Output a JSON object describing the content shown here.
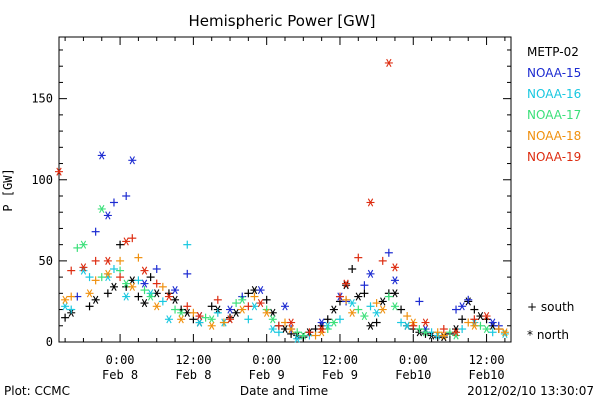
{
  "chart_data": {
    "type": "scatter",
    "title": "Hemispheric Power [GW]",
    "ylabel": "P [GW]",
    "xlabel": "Date and Time",
    "xlim": [
      -10,
      64
    ],
    "ylim": [
      0,
      188
    ],
    "y_ticks": [
      0,
      50,
      100,
      150
    ],
    "x_ticks": [
      {
        "x": 0,
        "l1": "0:00",
        "l2": "Feb 8"
      },
      {
        "x": 12,
        "l1": "12:00",
        "l2": "Feb 8"
      },
      {
        "x": 24,
        "l1": "0:00",
        "l2": "Feb 9"
      },
      {
        "x": 36,
        "l1": "12:00",
        "l2": "Feb 9"
      },
      {
        "x": 48,
        "l1": "0:00",
        "l2": "Feb10"
      },
      {
        "x": 60,
        "l1": "12:00",
        "l2": "Feb10"
      }
    ],
    "grid": false,
    "legend_position": "right",
    "marker_legend": [
      {
        "symbol": "+",
        "label": "south"
      },
      {
        "symbol": "*",
        "label": "north"
      }
    ],
    "series": [
      {
        "name": "METP-02",
        "color": "#000000",
        "south": [
          [
            -9,
            15
          ],
          [
            -5,
            22
          ],
          [
            -2,
            30
          ],
          [
            0,
            60
          ],
          [
            1,
            34
          ],
          [
            3,
            28
          ],
          [
            5,
            40
          ],
          [
            8,
            30
          ],
          [
            10,
            20
          ],
          [
            12,
            14
          ],
          [
            15,
            22
          ],
          [
            18,
            15
          ],
          [
            21,
            30
          ],
          [
            24,
            26
          ],
          [
            26,
            10
          ],
          [
            28,
            5
          ],
          [
            30,
            3
          ],
          [
            32,
            8
          ],
          [
            34,
            14
          ],
          [
            36,
            25
          ],
          [
            38,
            45
          ],
          [
            40,
            30
          ],
          [
            42,
            12
          ],
          [
            44,
            30
          ],
          [
            46,
            20
          ],
          [
            48,
            8
          ],
          [
            50,
            5
          ],
          [
            52,
            3
          ],
          [
            54,
            5
          ],
          [
            56,
            14
          ],
          [
            58,
            20
          ],
          [
            60,
            14
          ],
          [
            62,
            8
          ]
        ],
        "north": [
          [
            -8,
            18
          ],
          [
            -4,
            26
          ],
          [
            -1,
            34
          ],
          [
            2,
            38
          ],
          [
            4,
            24
          ],
          [
            6,
            30
          ],
          [
            9,
            26
          ],
          [
            11,
            18
          ],
          [
            13,
            12
          ],
          [
            16,
            20
          ],
          [
            19,
            18
          ],
          [
            22,
            32
          ],
          [
            25,
            18
          ],
          [
            27,
            8
          ],
          [
            29,
            4
          ],
          [
            31,
            6
          ],
          [
            33,
            10
          ],
          [
            35,
            20
          ],
          [
            37,
            35
          ],
          [
            39,
            28
          ],
          [
            41,
            10
          ],
          [
            43,
            25
          ],
          [
            45,
            30
          ],
          [
            47,
            10
          ],
          [
            49,
            6
          ],
          [
            51,
            4
          ],
          [
            53,
            3
          ],
          [
            55,
            8
          ],
          [
            57,
            25
          ],
          [
            59,
            16
          ],
          [
            61,
            10
          ]
        ]
      },
      {
        "name": "NOAA-15",
        "color": "#1c2bd1",
        "south": [
          [
            -7,
            28
          ],
          [
            -4,
            68
          ],
          [
            -1,
            86
          ],
          [
            1,
            90
          ],
          [
            6,
            45
          ],
          [
            11,
            42
          ],
          [
            20,
            28
          ],
          [
            28,
            8
          ],
          [
            37,
            25
          ],
          [
            40,
            35
          ],
          [
            44,
            55
          ],
          [
            49,
            25
          ],
          [
            55,
            20
          ],
          [
            57,
            26
          ],
          [
            62,
            10
          ]
        ],
        "north": [
          [
            -3,
            115
          ],
          [
            -2,
            78
          ],
          [
            2,
            112
          ],
          [
            4,
            36
          ],
          [
            9,
            32
          ],
          [
            13,
            16
          ],
          [
            18,
            20
          ],
          [
            23,
            32
          ],
          [
            27,
            22
          ],
          [
            33,
            12
          ],
          [
            36,
            28
          ],
          [
            41,
            42
          ],
          [
            45,
            38
          ],
          [
            50,
            8
          ],
          [
            56,
            22
          ],
          [
            61,
            12
          ]
        ]
      },
      {
        "name": "NOAA-16",
        "color": "#19c8e0",
        "south": [
          [
            -8,
            20
          ],
          [
            -5,
            40
          ],
          [
            -1,
            45
          ],
          [
            3,
            38
          ],
          [
            7,
            25
          ],
          [
            11,
            60
          ],
          [
            16,
            18
          ],
          [
            21,
            14
          ],
          [
            26,
            6
          ],
          [
            31,
            4
          ],
          [
            36,
            14
          ],
          [
            41,
            22
          ],
          [
            46,
            12
          ],
          [
            51,
            6
          ],
          [
            56,
            8
          ],
          [
            61,
            6
          ]
        ],
        "north": [
          [
            -9,
            22
          ],
          [
            -6,
            44
          ],
          [
            -2,
            40
          ],
          [
            1,
            28
          ],
          [
            5,
            30
          ],
          [
            8,
            14
          ],
          [
            13,
            12
          ],
          [
            17,
            12
          ],
          [
            22,
            22
          ],
          [
            25,
            8
          ],
          [
            29,
            2
          ],
          [
            34,
            10
          ],
          [
            38,
            24
          ],
          [
            42,
            18
          ],
          [
            47,
            10
          ],
          [
            52,
            4
          ],
          [
            58,
            12
          ],
          [
            63,
            5
          ]
        ]
      },
      {
        "name": "NOAA-17",
        "color": "#3be07a",
        "south": [
          [
            -7,
            58
          ],
          [
            -3,
            40
          ],
          [
            0,
            44
          ],
          [
            4,
            32
          ],
          [
            9,
            20
          ],
          [
            14,
            15
          ],
          [
            19,
            24
          ],
          [
            24,
            20
          ],
          [
            29,
            6
          ],
          [
            34,
            8
          ],
          [
            39,
            20
          ],
          [
            44,
            28
          ],
          [
            49,
            8
          ],
          [
            54,
            6
          ],
          [
            59,
            10
          ]
        ],
        "north": [
          [
            -6,
            60
          ],
          [
            -3,
            82
          ],
          [
            1,
            36
          ],
          [
            5,
            28
          ],
          [
            10,
            18
          ],
          [
            15,
            14
          ],
          [
            20,
            26
          ],
          [
            25,
            14
          ],
          [
            30,
            4
          ],
          [
            35,
            12
          ],
          [
            40,
            16
          ],
          [
            45,
            22
          ],
          [
            50,
            6
          ],
          [
            55,
            4
          ],
          [
            60,
            8
          ]
        ]
      },
      {
        "name": "NOAA-18",
        "color": "#f0900e",
        "south": [
          [
            -8,
            28
          ],
          [
            -4,
            38
          ],
          [
            0,
            50
          ],
          [
            3,
            52
          ],
          [
            7,
            34
          ],
          [
            12,
            18
          ],
          [
            17,
            12
          ],
          [
            22,
            28
          ],
          [
            27,
            12
          ],
          [
            32,
            4
          ],
          [
            37,
            26
          ],
          [
            42,
            24
          ],
          [
            47,
            16
          ],
          [
            52,
            6
          ],
          [
            57,
            12
          ],
          [
            62,
            8
          ]
        ],
        "north": [
          [
            -9,
            26
          ],
          [
            -5,
            30
          ],
          [
            -2,
            42
          ],
          [
            2,
            34
          ],
          [
            6,
            22
          ],
          [
            10,
            14
          ],
          [
            15,
            10
          ],
          [
            20,
            20
          ],
          [
            24,
            18
          ],
          [
            28,
            8
          ],
          [
            33,
            6
          ],
          [
            38,
            18
          ],
          [
            43,
            20
          ],
          [
            48,
            12
          ],
          [
            53,
            4
          ],
          [
            58,
            10
          ],
          [
            63,
            6
          ]
        ]
      },
      {
        "name": "NOAA-19",
        "color": "#dd2c10",
        "south": [
          [
            -8,
            44
          ],
          [
            -4,
            50
          ],
          [
            0,
            40
          ],
          [
            2,
            64
          ],
          [
            6,
            36
          ],
          [
            11,
            22
          ],
          [
            16,
            26
          ],
          [
            21,
            22
          ],
          [
            26,
            10
          ],
          [
            31,
            6
          ],
          [
            36,
            28
          ],
          [
            39,
            52
          ],
          [
            43,
            50
          ],
          [
            48,
            10
          ],
          [
            53,
            8
          ],
          [
            58,
            14
          ]
        ],
        "north": [
          [
            -10,
            105
          ],
          [
            -6,
            46
          ],
          [
            -2,
            50
          ],
          [
            1,
            62
          ],
          [
            4,
            44
          ],
          [
            8,
            28
          ],
          [
            13,
            16
          ],
          [
            18,
            14
          ],
          [
            23,
            24
          ],
          [
            28,
            12
          ],
          [
            33,
            8
          ],
          [
            37,
            36
          ],
          [
            41,
            86
          ],
          [
            44,
            172
          ],
          [
            45,
            46
          ],
          [
            50,
            12
          ],
          [
            55,
            6
          ],
          [
            60,
            16
          ]
        ]
      }
    ]
  },
  "footer": {
    "left": "Plot: CCMC",
    "center": "Date and Time",
    "right": "2012/02/10 13:30:07"
  }
}
